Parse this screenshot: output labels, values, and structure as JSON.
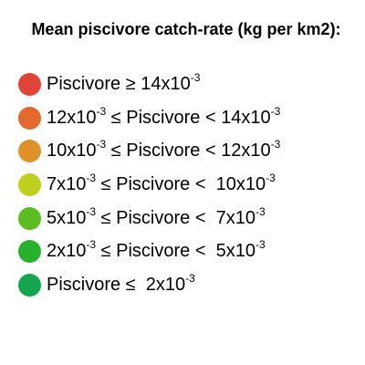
{
  "legend": {
    "title": "Mean piscivore catch-rate (kg per km2):",
    "items": [
      {
        "color": "#e04437",
        "parts": [
          {
            "t": "Piscivore ≥ 14x10"
          },
          {
            "sup": "-3"
          }
        ]
      },
      {
        "color": "#e36a2e",
        "parts": [
          {
            "t": "12x10"
          },
          {
            "sup": "-3"
          },
          {
            "t": " ≤ Piscivore < 14x10"
          },
          {
            "sup": "-3"
          }
        ]
      },
      {
        "color": "#e0922a",
        "parts": [
          {
            "t": "10x10"
          },
          {
            "sup": "-3"
          },
          {
            "t": " ≤ Piscivore < 12x10"
          },
          {
            "sup": "-3"
          }
        ]
      },
      {
        "color": "#bfcf1f",
        "parts": [
          {
            "t": "7x10"
          },
          {
            "sup": "-3"
          },
          {
            "t": " ≤ Piscivore <  10x10"
          },
          {
            "sup": "-3"
          }
        ]
      },
      {
        "color": "#5cbd20",
        "parts": [
          {
            "t": "5x10"
          },
          {
            "sup": "-3"
          },
          {
            "t": " ≤ Piscivore <  7x10"
          },
          {
            "sup": "-3"
          }
        ]
      },
      {
        "color": "#27b22e",
        "parts": [
          {
            "t": "2x10"
          },
          {
            "sup": "-3"
          },
          {
            "t": " ≤ Piscivore <  5x10"
          },
          {
            "sup": "-3"
          }
        ]
      },
      {
        "color": "#13a64f",
        "parts": [
          {
            "t": "Piscivore ≤  2x10"
          },
          {
            "sup": "-3"
          }
        ]
      }
    ]
  }
}
